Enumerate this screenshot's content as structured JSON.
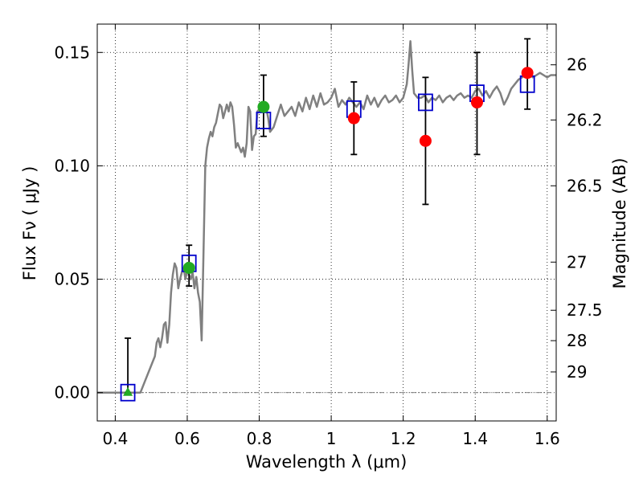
{
  "chart_data": {
    "type": "scatter",
    "title": "",
    "xlabel": "Wavelength  λ (μm)",
    "ylabel": "Flux  Fν  ( μJy )",
    "y2label": "Magnitude (AB)",
    "xlim": [
      0.35,
      1.625
    ],
    "ylim": [
      -0.0125,
      0.1625
    ],
    "grid": true,
    "x_ticks": [
      {
        "value": 0.4,
        "label": "0.4"
      },
      {
        "value": 0.6,
        "label": "0.6"
      },
      {
        "value": 0.8,
        "label": "0.8"
      },
      {
        "value": 1.0,
        "label": "1"
      },
      {
        "value": 1.2,
        "label": "1.2"
      },
      {
        "value": 1.4,
        "label": "1.4"
      },
      {
        "value": 1.6,
        "label": "1.6"
      }
    ],
    "y_ticks": [
      {
        "value": 0.0,
        "label": "0.00"
      },
      {
        "value": 0.05,
        "label": "0.05"
      },
      {
        "value": 0.1,
        "label": "0.10"
      },
      {
        "value": 0.15,
        "label": "0.15"
      }
    ],
    "y2_ticks": [
      {
        "value": 26.0,
        "label": "26"
      },
      {
        "value": 26.2,
        "label": "26.2"
      },
      {
        "value": 26.5,
        "label": "26.5"
      },
      {
        "value": 27.0,
        "label": "27"
      },
      {
        "value": 27.5,
        "label": "27.5"
      },
      {
        "value": 28.0,
        "label": "28"
      },
      {
        "value": 29.0,
        "label": "29"
      }
    ],
    "colors": {
      "sed": "#808080",
      "model_boxes": "#0000cc",
      "green_points": "#22aa22",
      "red_points": "#ff0000",
      "errorbars": "#000000"
    },
    "series": [
      {
        "kind": "line",
        "points": [
          [
            0.35,
            0.0
          ],
          [
            0.47,
            0.0
          ],
          [
            0.49,
            0.008
          ],
          [
            0.51,
            0.016
          ],
          [
            0.515,
            0.022
          ],
          [
            0.52,
            0.024
          ],
          [
            0.525,
            0.02
          ],
          [
            0.53,
            0.024
          ],
          [
            0.535,
            0.03
          ],
          [
            0.54,
            0.031
          ],
          [
            0.545,
            0.022
          ],
          [
            0.55,
            0.03
          ],
          [
            0.555,
            0.044
          ],
          [
            0.56,
            0.052
          ],
          [
            0.565,
            0.057
          ],
          [
            0.57,
            0.055
          ],
          [
            0.575,
            0.046
          ],
          [
            0.58,
            0.05
          ],
          [
            0.585,
            0.053
          ],
          [
            0.59,
            0.055
          ],
          [
            0.595,
            0.05
          ],
          [
            0.6,
            0.054
          ],
          [
            0.61,
            0.05
          ],
          [
            0.615,
            0.053
          ],
          [
            0.62,
            0.046
          ],
          [
            0.625,
            0.051
          ],
          [
            0.63,
            0.044
          ],
          [
            0.635,
            0.04
          ],
          [
            0.64,
            0.023
          ],
          [
            0.645,
            0.06
          ],
          [
            0.65,
            0.1
          ],
          [
            0.655,
            0.108
          ],
          [
            0.66,
            0.112
          ],
          [
            0.665,
            0.115
          ],
          [
            0.67,
            0.113
          ],
          [
            0.675,
            0.117
          ],
          [
            0.68,
            0.119
          ],
          [
            0.685,
            0.123
          ],
          [
            0.69,
            0.127
          ],
          [
            0.695,
            0.126
          ],
          [
            0.7,
            0.121
          ],
          [
            0.705,
            0.124
          ],
          [
            0.71,
            0.127
          ],
          [
            0.715,
            0.124
          ],
          [
            0.72,
            0.128
          ],
          [
            0.725,
            0.126
          ],
          [
            0.73,
            0.118
          ],
          [
            0.735,
            0.108
          ],
          [
            0.74,
            0.11
          ],
          [
            0.745,
            0.108
          ],
          [
            0.75,
            0.106
          ],
          [
            0.755,
            0.108
          ],
          [
            0.76,
            0.104
          ],
          [
            0.765,
            0.11
          ],
          [
            0.77,
            0.126
          ],
          [
            0.775,
            0.124
          ],
          [
            0.78,
            0.107
          ],
          [
            0.785,
            0.113
          ],
          [
            0.79,
            0.114
          ],
          [
            0.795,
            0.124
          ],
          [
            0.8,
            0.125
          ],
          [
            0.81,
            0.127
          ],
          [
            0.82,
            0.125
          ],
          [
            0.825,
            0.121
          ],
          [
            0.83,
            0.115
          ],
          [
            0.84,
            0.117
          ],
          [
            0.85,
            0.122
          ],
          [
            0.86,
            0.127
          ],
          [
            0.87,
            0.122
          ],
          [
            0.88,
            0.124
          ],
          [
            0.89,
            0.126
          ],
          [
            0.9,
            0.122
          ],
          [
            0.91,
            0.128
          ],
          [
            0.92,
            0.124
          ],
          [
            0.93,
            0.13
          ],
          [
            0.94,
            0.125
          ],
          [
            0.95,
            0.131
          ],
          [
            0.96,
            0.126
          ],
          [
            0.97,
            0.132
          ],
          [
            0.98,
            0.127
          ],
          [
            0.99,
            0.128
          ],
          [
            1.0,
            0.13
          ],
          [
            1.01,
            0.134
          ],
          [
            1.02,
            0.126
          ],
          [
            1.03,
            0.129
          ],
          [
            1.04,
            0.127
          ],
          [
            1.05,
            0.13
          ],
          [
            1.06,
            0.128
          ],
          [
            1.07,
            0.126
          ],
          [
            1.08,
            0.128
          ],
          [
            1.09,
            0.125
          ],
          [
            1.1,
            0.131
          ],
          [
            1.11,
            0.127
          ],
          [
            1.12,
            0.13
          ],
          [
            1.13,
            0.126
          ],
          [
            1.14,
            0.129
          ],
          [
            1.15,
            0.131
          ],
          [
            1.16,
            0.128
          ],
          [
            1.17,
            0.129
          ],
          [
            1.18,
            0.131
          ],
          [
            1.19,
            0.128
          ],
          [
            1.2,
            0.13
          ],
          [
            1.21,
            0.136
          ],
          [
            1.215,
            0.145
          ],
          [
            1.22,
            0.155
          ],
          [
            1.225,
            0.142
          ],
          [
            1.23,
            0.132
          ],
          [
            1.24,
            0.13
          ],
          [
            1.25,
            0.13
          ],
          [
            1.26,
            0.131
          ],
          [
            1.27,
            0.128
          ],
          [
            1.28,
            0.13
          ],
          [
            1.29,
            0.129
          ],
          [
            1.3,
            0.131
          ],
          [
            1.31,
            0.128
          ],
          [
            1.32,
            0.13
          ],
          [
            1.33,
            0.131
          ],
          [
            1.34,
            0.129
          ],
          [
            1.35,
            0.131
          ],
          [
            1.36,
            0.132
          ],
          [
            1.37,
            0.13
          ],
          [
            1.38,
            0.131
          ],
          [
            1.39,
            0.13
          ],
          [
            1.4,
            0.133
          ],
          [
            1.41,
            0.134
          ],
          [
            1.42,
            0.131
          ],
          [
            1.43,
            0.133
          ],
          [
            1.44,
            0.13
          ],
          [
            1.45,
            0.133
          ],
          [
            1.46,
            0.135
          ],
          [
            1.47,
            0.132
          ],
          [
            1.48,
            0.127
          ],
          [
            1.49,
            0.13
          ],
          [
            1.5,
            0.134
          ],
          [
            1.51,
            0.136
          ],
          [
            1.52,
            0.138
          ],
          [
            1.53,
            0.139
          ],
          [
            1.54,
            0.14
          ],
          [
            1.55,
            0.141
          ],
          [
            1.56,
            0.139
          ],
          [
            1.57,
            0.14
          ],
          [
            1.58,
            0.141
          ],
          [
            1.59,
            0.14
          ],
          [
            1.6,
            0.139
          ],
          [
            1.61,
            0.14
          ],
          [
            1.625,
            0.14
          ]
        ]
      },
      {
        "kind": "model_boxes",
        "points": [
          [
            0.435,
            0.0
          ],
          [
            0.605,
            0.057
          ],
          [
            0.812,
            0.12
          ],
          [
            1.063,
            0.125
          ],
          [
            1.262,
            0.128
          ],
          [
            1.405,
            0.132
          ],
          [
            1.545,
            0.136
          ]
        ]
      },
      {
        "kind": "triangle",
        "points": [
          [
            0.435,
            0.0
          ]
        ]
      },
      {
        "kind": "green_points",
        "points": [
          [
            0.605,
            0.055
          ],
          [
            0.812,
            0.126
          ]
        ]
      },
      {
        "kind": "red_points",
        "points": [
          [
            1.063,
            0.121
          ],
          [
            1.262,
            0.111
          ],
          [
            1.405,
            0.128
          ],
          [
            1.545,
            0.141
          ]
        ]
      },
      {
        "kind": "errorbars",
        "points": [
          {
            "x": 0.435,
            "lo": 0.0,
            "hi": 0.024
          },
          {
            "x": 0.605,
            "lo": 0.047,
            "hi": 0.065
          },
          {
            "x": 0.812,
            "lo": 0.113,
            "hi": 0.14
          },
          {
            "x": 1.063,
            "lo": 0.105,
            "hi": 0.137
          },
          {
            "x": 1.262,
            "lo": 0.083,
            "hi": 0.139
          },
          {
            "x": 1.405,
            "lo": 0.105,
            "hi": 0.15
          },
          {
            "x": 1.545,
            "lo": 0.125,
            "hi": 0.156
          }
        ]
      }
    ]
  }
}
